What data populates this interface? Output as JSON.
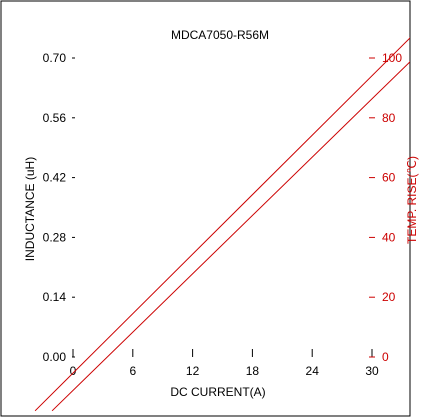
{
  "chart_data": {
    "type": "line",
    "title": "MDCA7050-R56M",
    "xlabel": "DC CURRENT(A)",
    "ylabel_left": "INDUCTANCE (uH)",
    "ylabel_right": "TEMP. RISE(℃)",
    "x_ticks": [
      "0",
      "6",
      "12",
      "18",
      "24",
      "30"
    ],
    "y_left_ticks": [
      "0.00",
      "0.14",
      "0.28",
      "0.42",
      "0.56",
      "0.70"
    ],
    "y_right_ticks": [
      "0",
      "20",
      "40",
      "60",
      "80",
      "100"
    ],
    "xlim": [
      0,
      30
    ],
    "ylim_left": [
      0,
      0.7
    ],
    "ylim_right": [
      0,
      100
    ],
    "grid": false,
    "series": [
      {
        "axis": "right",
        "color": "#cc0000",
        "x": [
          -3.8,
          34.2
        ],
        "y": [
          -18,
          108
        ]
      },
      {
        "axis": "right",
        "color": "#cc0000",
        "x": [
          -2.1,
          34.2
        ],
        "y": [
          -18,
          100
        ]
      }
    ],
    "colors": {
      "left_axis": "#000000",
      "right_axis": "#cc0000"
    }
  }
}
